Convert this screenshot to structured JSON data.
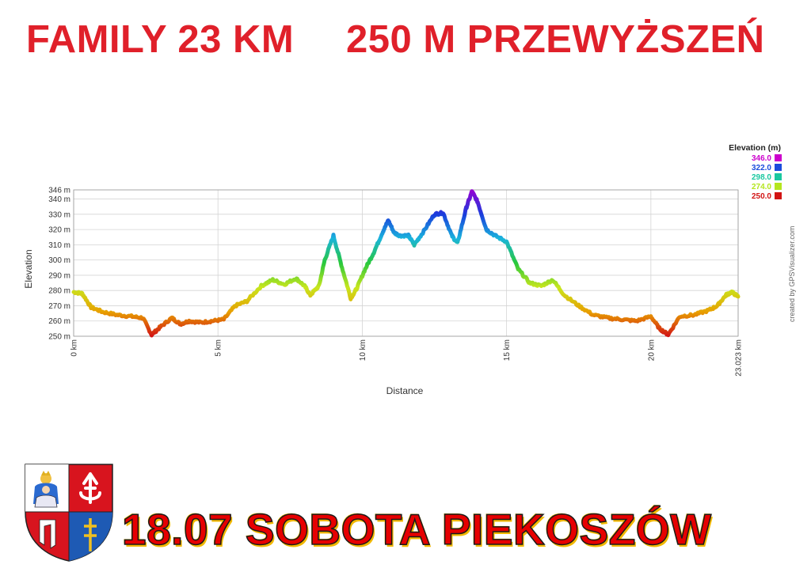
{
  "header": {
    "left": "FAMILY 23 KM",
    "right": "250 M PRZEWYŻSZEŃ"
  },
  "footer": {
    "title": "18.07 SOBOTA PIEKOSZÓW"
  },
  "credit": "created by GPSVisualizer.com",
  "chart_data": {
    "type": "line",
    "xlabel": "Distance",
    "ylabel": "Elevation",
    "xlim": [
      0,
      23.023
    ],
    "ylim": [
      250,
      346
    ],
    "x_ticks": [
      0,
      5,
      10,
      15,
      20,
      23.023
    ],
    "x_tick_labels": [
      "0 km",
      "5 km",
      "10 km",
      "15 km",
      "20 km",
      "23.023 km"
    ],
    "y_ticks": [
      250,
      260,
      270,
      280,
      290,
      300,
      310,
      320,
      330,
      340,
      346
    ],
    "y_tick_labels": [
      "250 m",
      "260 m",
      "270 m",
      "280 m",
      "290 m",
      "300 m",
      "310 m",
      "320 m",
      "330 m",
      "340 m",
      "346 m"
    ],
    "grid": true,
    "legend": {
      "title": "Elevation (m)",
      "placement": "top-right",
      "entries": [
        {
          "label": "346.0",
          "color": "#cc00cc"
        },
        {
          "label": "322.0",
          "color": "#1a4cdc"
        },
        {
          "label": "298.0",
          "color": "#1ac8a0"
        },
        {
          "label": "274.0",
          "color": "#b4e61e"
        },
        {
          "label": "250.0",
          "color": "#d21414"
        }
      ]
    },
    "colors": [
      "#d21414",
      "#e8a000",
      "#c8e61e",
      "#28c83c",
      "#1ab4dc",
      "#1a3cdc",
      "#9600d2"
    ],
    "series": [
      {
        "x": [
          0,
          0.3,
          0.6,
          1.0,
          1.5,
          2.0,
          2.4,
          2.7,
          3.0,
          3.4,
          3.7,
          4.0,
          4.4,
          4.8,
          5.2,
          5.6,
          6.0,
          6.5,
          6.9,
          7.3,
          7.7,
          8.0,
          8.2,
          8.5,
          8.7,
          9.0,
          9.3,
          9.6,
          9.8,
          10.1,
          10.4,
          10.7,
          10.9,
          11.1,
          11.3,
          11.6,
          11.8,
          12.1,
          12.5,
          12.8,
          13.1,
          13.3,
          13.6,
          13.8,
          14.0,
          14.3,
          14.6,
          15.0,
          15.4,
          15.8,
          16.2,
          16.6,
          17.0,
          17.5,
          18.0,
          18.5,
          19.0,
          19.5,
          20.0,
          20.3,
          20.6,
          21.0,
          21.5,
          22.0,
          22.3,
          22.6,
          22.8,
          23.023
        ],
        "y": [
          279,
          278,
          269,
          266,
          264,
          263,
          262,
          251,
          256,
          262,
          258,
          260,
          259,
          260,
          261,
          270,
          273,
          283,
          287,
          284,
          288,
          283,
          277,
          283,
          300,
          316,
          295,
          275,
          281,
          294,
          305,
          318,
          326,
          318,
          316,
          316,
          310,
          318,
          330,
          331,
          316,
          311,
          334,
          345,
          338,
          320,
          316,
          312,
          294,
          285,
          283,
          287,
          277,
          270,
          264,
          262,
          261,
          260,
          263,
          255,
          251,
          263,
          264,
          267,
          270,
          277,
          279,
          276
        ]
      }
    ]
  }
}
